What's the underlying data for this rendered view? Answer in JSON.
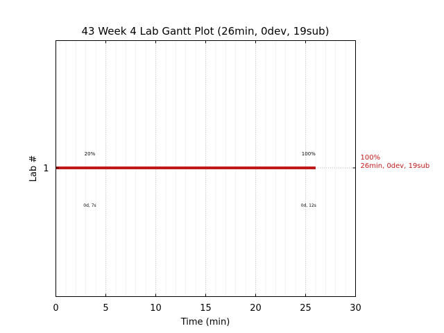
{
  "chart_data": {
    "type": "gantt",
    "title": "43 Week 4 Lab Gantt Plot (26min, 0dev, 19sub)",
    "xlabel": "Time (min)",
    "ylabel": "Lab #",
    "xlim": [
      0,
      30
    ],
    "x_ticks": [
      0,
      5,
      10,
      15,
      20,
      25,
      30
    ],
    "x_tick_labels": [
      "0",
      "5",
      "10",
      "15",
      "20",
      "25",
      "30"
    ],
    "y_ticks": [
      1
    ],
    "y_tick_labels": [
      "1"
    ],
    "grid": true,
    "bar_color": "#c0191a",
    "bars": [
      {
        "lab": 1,
        "start": 0,
        "end": 26,
        "end_label_pct": "100%",
        "end_label_summary": "26min, 0dev, 19sub"
      }
    ],
    "annotations": [
      {
        "x": 3.4,
        "pct": "20%",
        "time": "0d, 7s"
      },
      {
        "x": 25.3,
        "pct": "100%",
        "time": "0d, 12s"
      }
    ]
  }
}
